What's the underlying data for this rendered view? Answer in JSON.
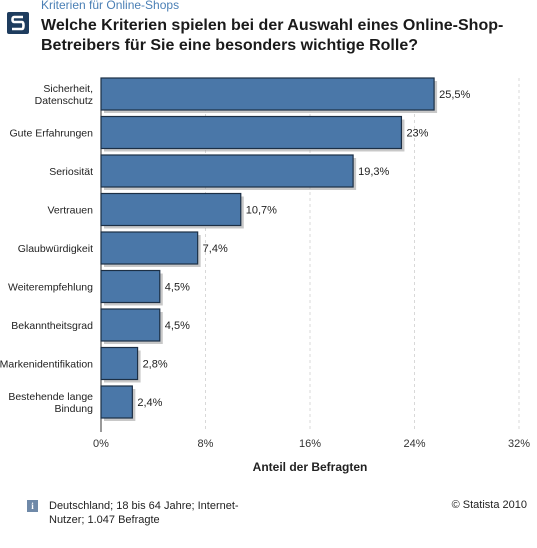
{
  "header": {
    "kicker": "Kriterien für Online-Shops",
    "title": "Welche Kriterien spielen bei der Auswahl eines Online-Shop-Betreibers für Sie eine besonders wichtige Rolle?"
  },
  "chart_data": {
    "type": "bar",
    "orientation": "horizontal",
    "title": "Welche Kriterien spielen bei der Auswahl eines Online-Shop-Betreibers für Sie eine besonders wichtige Rolle?",
    "xlabel": "Anteil der Befragten",
    "ylabel": "",
    "categories": [
      [
        "Sicherheit,",
        "Datenschutz"
      ],
      [
        "Gute Erfahrungen"
      ],
      [
        "Seriosität"
      ],
      [
        "Vertrauen"
      ],
      [
        "Glaubwürdigkeit"
      ],
      [
        "Weiterempfehlung"
      ],
      [
        "Bekanntheitsgrad"
      ],
      [
        "Markenidentifikation"
      ],
      [
        "Bestehende lange",
        "Bindung"
      ]
    ],
    "values": [
      25.5,
      23,
      19.3,
      10.7,
      7.4,
      4.5,
      4.5,
      2.8,
      2.4
    ],
    "value_labels": [
      "25,5%",
      "23%",
      "19,3%",
      "10,7%",
      "7,4%",
      "4,5%",
      "4,5%",
      "2,8%",
      "2,4%"
    ],
    "xlim": [
      0,
      32
    ],
    "xticks": [
      0,
      8,
      16,
      24,
      32
    ],
    "xtick_labels": [
      "0%",
      "8%",
      "16%",
      "24%",
      "32%"
    ],
    "grid": true,
    "colors": {
      "bar": "#4a77a8",
      "bar_border": "#1c2f45",
      "shadow": "#9a9a9a",
      "grid": "#d8d8d8"
    }
  },
  "footer": {
    "info_icon": "i",
    "source": "Deutschland; 18 bis 64 Jahre; Internet-Nutzer; 1.047 Befragte",
    "copyright": "© Statista 2010"
  }
}
